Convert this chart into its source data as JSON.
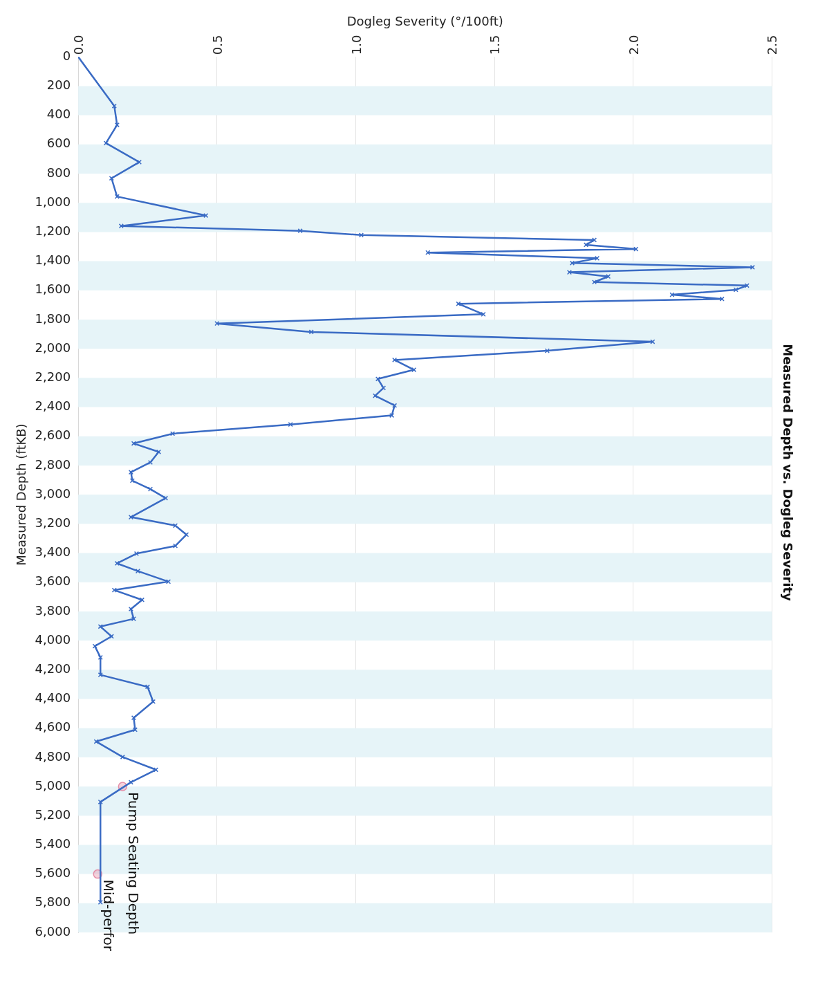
{
  "chart_data": {
    "type": "line",
    "title": "Measured Depth vs. Dogleg Severity",
    "xlabel": "Dogleg Severity (°/100ft)",
    "ylabel": "Measured Depth (ftKB)",
    "xlim": [
      0,
      2.5
    ],
    "xticks": [
      {
        "value": 0,
        "label": "0.0"
      },
      0.5,
      {
        "value": 1,
        "label": "1.0"
      },
      1.5,
      {
        "value": 2,
        "label": "2.0"
      },
      2.5
    ],
    "ylim": [
      6000,
      0
    ],
    "yticks": [
      0,
      200,
      400,
      600,
      800,
      {
        "value": 1000,
        "label": "1,000"
      },
      {
        "value": 1200,
        "label": "1,200"
      },
      {
        "value": 1400,
        "label": "1,400"
      },
      {
        "value": 1600,
        "label": "1,600"
      },
      {
        "value": 1800,
        "label": "1,800"
      },
      {
        "value": 2000,
        "label": "2,000"
      },
      {
        "value": 2200,
        "label": "2,200"
      },
      {
        "value": 2400,
        "label": "2,400"
      },
      {
        "value": 2600,
        "label": "2,600"
      },
      {
        "value": 2800,
        "label": "2,800"
      },
      {
        "value": 3000,
        "label": "3,000"
      },
      {
        "value": 3200,
        "label": "3,200"
      },
      {
        "value": 3400,
        "label": "3,400"
      },
      {
        "value": 3600,
        "label": "3,600"
      },
      {
        "value": 3800,
        "label": "3,800"
      },
      {
        "value": 4000,
        "label": "4,000"
      },
      {
        "value": 4200,
        "label": "4,200"
      },
      {
        "value": 4400,
        "label": "4,400"
      },
      {
        "value": 4600,
        "label": "4,600"
      },
      {
        "value": 4800,
        "label": "4,800"
      },
      {
        "value": 5000,
        "label": "5,000"
      },
      {
        "value": 5200,
        "label": "5,200"
      },
      {
        "value": 5400,
        "label": "5,400"
      },
      {
        "value": 5600,
        "label": "5,600"
      },
      {
        "value": 5800,
        "label": "5,800"
      },
      {
        "value": 6000,
        "label": "6,000"
      }
    ],
    "grid": "x",
    "legend": false,
    "marker": "cross",
    "line_style": "solid",
    "orientation": "horizontal",
    "series": [
      {
        "color": "#3a6bc4",
        "values": [
          0,
          0.13,
          0.14,
          0.1,
          0.22,
          0.12,
          0.14,
          0.46,
          0.155,
          0.8,
          1.02,
          1.86,
          1.83,
          2.01,
          1.26,
          1.87,
          1.78,
          2.43,
          1.77,
          1.91,
          1.86,
          2.41,
          2.37,
          2.14,
          2.32,
          1.37,
          1.46,
          0.5,
          0.84,
          2.07,
          1.69,
          1.14,
          1.21,
          1.08,
          1.1,
          1.07,
          1.14,
          1.13,
          0.765,
          0.34,
          0.2,
          0.29,
          0.26,
          0.19,
          0.195,
          0.26,
          0.315,
          0.19,
          0.35,
          0.39,
          0.35,
          0.21,
          0.14,
          0.215,
          0.325,
          0.13,
          0.23,
          0.19,
          0.2,
          0.08,
          0.12,
          0.06,
          0.08,
          0.08,
          0.25,
          0.27,
          0.2,
          0.205,
          0.065,
          0.16,
          0.28,
          0.19,
          0.08,
          0.08
        ],
        "x": [
          0,
          337,
          466,
          591,
          721,
          832,
          957,
          1087,
          1159,
          1192,
          1221,
          1255,
          1288,
          1317,
          1341,
          1380,
          1413,
          1442,
          1476,
          1505,
          1543,
          1567,
          1596,
          1630,
          1659,
          1692,
          1764,
          1827,
          1885,
          1952,
          2014,
          2077,
          2144,
          2207,
          2269,
          2322,
          2389,
          2457,
          2519,
          2582,
          2649,
          2707,
          2779,
          2846,
          2904,
          2962,
          3024,
          3154,
          3212,
          3274,
          3351,
          3404,
          3471,
          3524,
          3596,
          3654,
          3721,
          3784,
          3851,
          3904,
          3971,
          4038,
          4115,
          4235,
          4317,
          4418,
          4529,
          4611,
          4692,
          4798,
          4885,
          4971,
          5106,
          5793
        ]
      },
      {
        "type": "scatter",
        "color": "#e58fa8",
        "marker": "circle",
        "values": [
          0.16,
          0.07
        ],
        "x": [
          5000,
          5600
        ]
      }
    ],
    "bands": [
      {
        "axis": "y",
        "from": 200,
        "to": 400,
        "color": "#e6f4f8"
      },
      {
        "axis": "y",
        "from": 600,
        "to": 800,
        "color": "#e6f4f8"
      },
      {
        "axis": "y",
        "from": 1000,
        "to": 1200,
        "color": "#e6f4f8"
      },
      {
        "axis": "y",
        "from": 1400,
        "to": 1600,
        "color": "#e6f4f8"
      },
      {
        "axis": "y",
        "from": 1800,
        "to": 2000,
        "color": "#e6f4f8"
      },
      {
        "axis": "y",
        "from": 2200,
        "to": 2400,
        "color": "#e6f4f8"
      },
      {
        "axis": "y",
        "from": 2600,
        "to": 2800,
        "color": "#e6f4f8"
      },
      {
        "axis": "y",
        "from": 3000,
        "to": 3200,
        "color": "#e6f4f8"
      },
      {
        "axis": "y",
        "from": 3400,
        "to": 3600,
        "color": "#e6f4f8"
      },
      {
        "axis": "y",
        "from": 3800,
        "to": 4000,
        "color": "#e6f4f8"
      },
      {
        "axis": "y",
        "from": 4200,
        "to": 4400,
        "color": "#e6f4f8"
      },
      {
        "axis": "y",
        "from": 4600,
        "to": 4800,
        "color": "#e6f4f8"
      },
      {
        "axis": "y",
        "from": 5000,
        "to": 5200,
        "color": "#e6f4f8"
      },
      {
        "axis": "y",
        "from": 5400,
        "to": 5600,
        "color": "#e6f4f8"
      },
      {
        "axis": "y",
        "from": 5800,
        "to": 6000,
        "color": "#e6f4f8"
      }
    ],
    "annotations": [
      {
        "text": "Pump Seating Depth",
        "x": 0.16,
        "y": 5000
      },
      {
        "text": "Mid-perfor",
        "x": 0.07,
        "y": 5600
      }
    ]
  }
}
